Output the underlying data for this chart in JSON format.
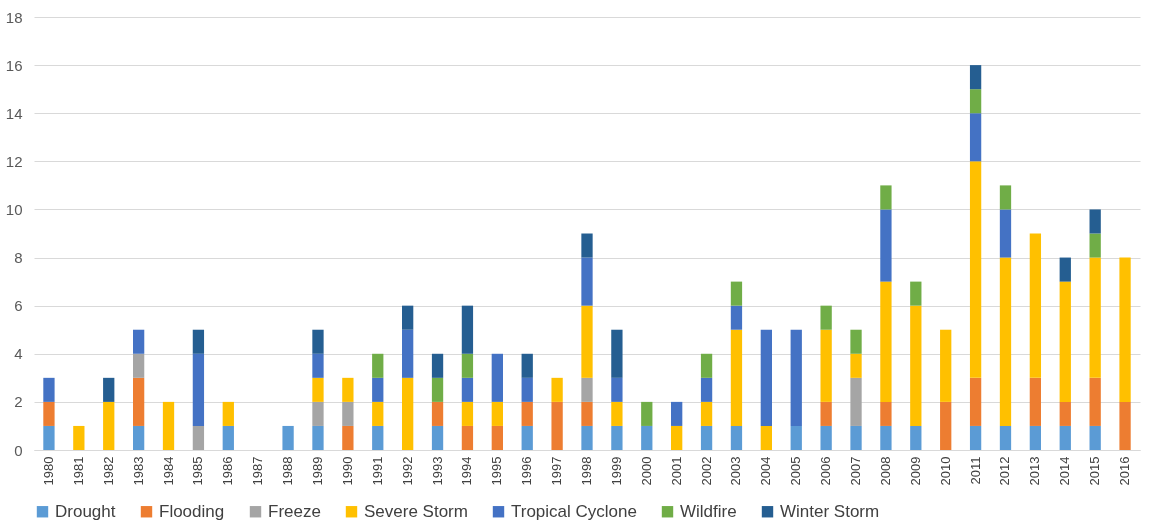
{
  "chart_data": {
    "type": "bar",
    "stacked": true,
    "categories": [
      "1980",
      "1981",
      "1982",
      "1983",
      "1984",
      "1985",
      "1986",
      "1987",
      "1988",
      "1989",
      "1990",
      "1991",
      "1992",
      "1993",
      "1994",
      "1995",
      "1996",
      "1997",
      "1998",
      "1999",
      "2000",
      "2001",
      "2002",
      "2003",
      "2004",
      "2005",
      "2006",
      "2007",
      "2008",
      "2009",
      "2010",
      "2011",
      "2012",
      "2013",
      "2014",
      "2015",
      "2016"
    ],
    "series": [
      {
        "name": "Drought",
        "color": "#5b9bd5",
        "values": [
          1,
          null,
          null,
          1,
          null,
          null,
          1,
          null,
          1,
          1,
          null,
          1,
          null,
          1,
          null,
          null,
          1,
          null,
          1,
          1,
          1,
          null,
          1,
          1,
          null,
          1,
          1,
          1,
          1,
          1,
          null,
          1,
          1,
          1,
          1,
          1,
          null
        ]
      },
      {
        "name": "Flooding",
        "color": "#ed7d31",
        "values": [
          1,
          null,
          null,
          2,
          null,
          null,
          null,
          null,
          null,
          null,
          1,
          null,
          null,
          1,
          1,
          1,
          1,
          2,
          1,
          null,
          null,
          null,
          null,
          null,
          null,
          null,
          1,
          null,
          1,
          null,
          2,
          2,
          null,
          2,
          1,
          2,
          2
        ]
      },
      {
        "name": "Freeze",
        "color": "#a5a5a5",
        "values": [
          null,
          null,
          null,
          1,
          null,
          1,
          null,
          null,
          null,
          1,
          1,
          null,
          null,
          null,
          null,
          null,
          null,
          null,
          1,
          null,
          null,
          null,
          null,
          null,
          null,
          null,
          null,
          2,
          null,
          null,
          null,
          null,
          null,
          null,
          null,
          null,
          null
        ]
      },
      {
        "name": "Severe Storm",
        "color": "#ffc000",
        "values": [
          null,
          1,
          2,
          null,
          2,
          null,
          1,
          null,
          null,
          1,
          1,
          1,
          3,
          null,
          1,
          1,
          null,
          1,
          3,
          1,
          null,
          1,
          1,
          4,
          1,
          null,
          3,
          1,
          5,
          5,
          3,
          9,
          7,
          6,
          5,
          5,
          6
        ]
      },
      {
        "name": "Tropical Cyclone",
        "color": "#4472c4",
        "values": [
          1,
          null,
          null,
          1,
          null,
          3,
          null,
          null,
          null,
          1,
          null,
          1,
          2,
          null,
          1,
          2,
          1,
          null,
          2,
          1,
          null,
          1,
          1,
          1,
          4,
          4,
          null,
          null,
          3,
          null,
          null,
          2,
          2,
          null,
          null,
          null,
          null
        ]
      },
      {
        "name": "Wildfire",
        "color": "#70ad47",
        "values": [
          null,
          null,
          null,
          null,
          null,
          null,
          null,
          null,
          null,
          null,
          null,
          1,
          null,
          1,
          1,
          null,
          null,
          null,
          null,
          null,
          1,
          null,
          1,
          1,
          null,
          null,
          1,
          1,
          1,
          1,
          null,
          1,
          1,
          null,
          null,
          1,
          null
        ]
      },
      {
        "name": "Winter Storm",
        "color": "#255e91",
        "values": [
          null,
          null,
          1,
          null,
          null,
          1,
          null,
          null,
          null,
          1,
          null,
          null,
          1,
          1,
          2,
          null,
          1,
          null,
          1,
          2,
          null,
          null,
          null,
          null,
          null,
          null,
          null,
          null,
          null,
          null,
          null,
          1,
          null,
          null,
          1,
          1,
          null
        ]
      }
    ],
    "ylim": [
      0,
      18
    ],
    "yticks": [
      0,
      2,
      4,
      6,
      8,
      10,
      12,
      14,
      16,
      18
    ],
    "grid": "y",
    "legend": "bottom"
  }
}
